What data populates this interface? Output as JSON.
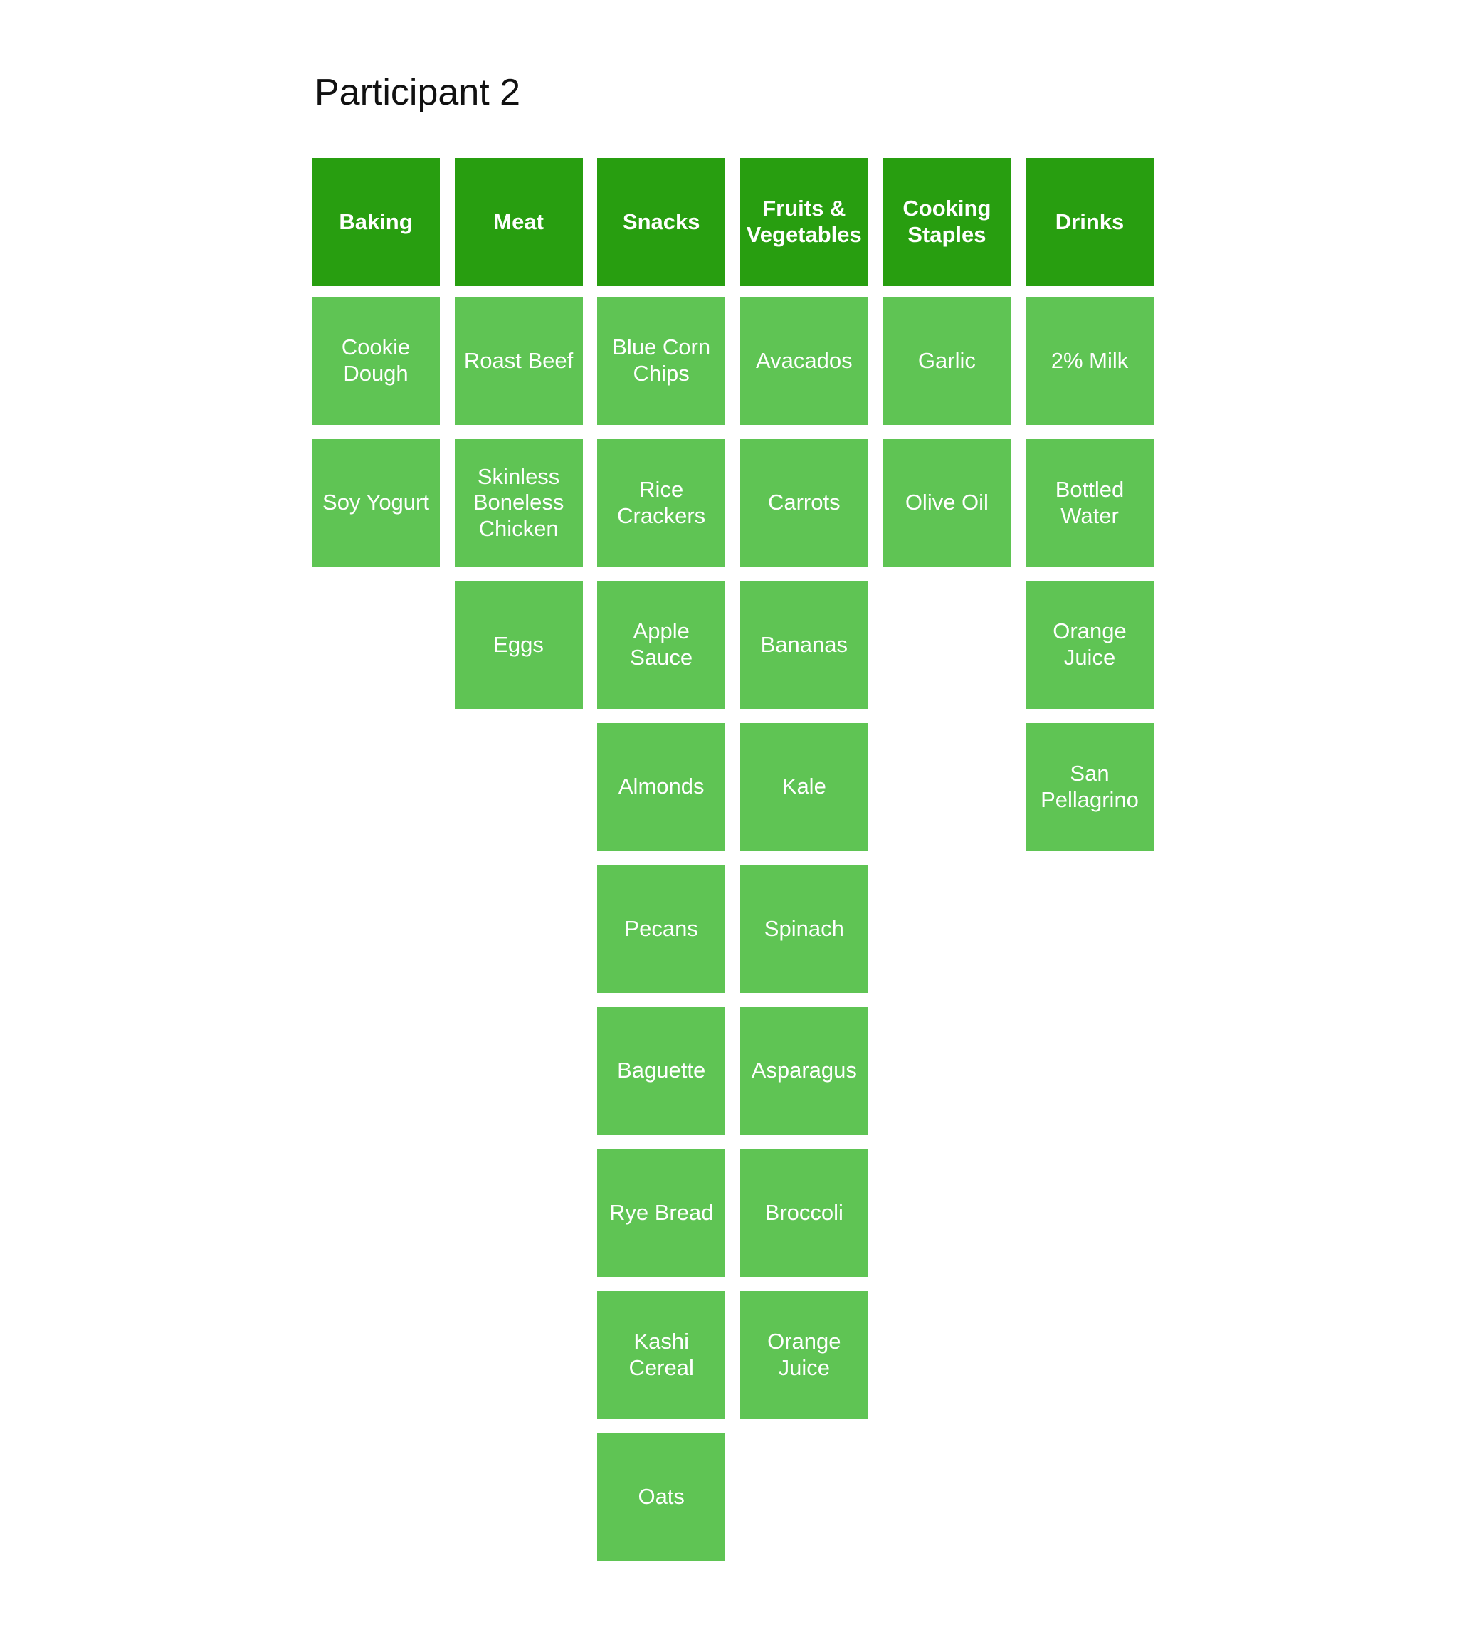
{
  "title": "Participant 2",
  "columns": [
    {
      "header": "Baking",
      "items": [
        "Cookie Dough",
        "Soy Yogurt"
      ]
    },
    {
      "header": "Meat",
      "items": [
        "Roast Beef",
        "Skinless Boneless Chicken",
        "Eggs"
      ]
    },
    {
      "header": "Snacks",
      "items": [
        "Blue Corn Chips",
        "Rice Crackers",
        "Apple Sauce",
        "Almonds",
        "Pecans",
        "Baguette",
        "Rye Bread",
        "Kashi Cereal",
        "Oats"
      ]
    },
    {
      "header": "Fruits & Vegetables",
      "items": [
        "Avacados",
        "Carrots",
        "Bananas",
        "Kale",
        "Spinach",
        "Asparagus",
        "Broccoli",
        "Orange Juice"
      ]
    },
    {
      "header": "Cooking Staples",
      "items": [
        "Garlic",
        "Olive Oil"
      ]
    },
    {
      "header": "Drinks",
      "items": [
        "2% Milk",
        "Bottled Water",
        "Orange Juice",
        "San Pellagrino"
      ]
    }
  ]
}
